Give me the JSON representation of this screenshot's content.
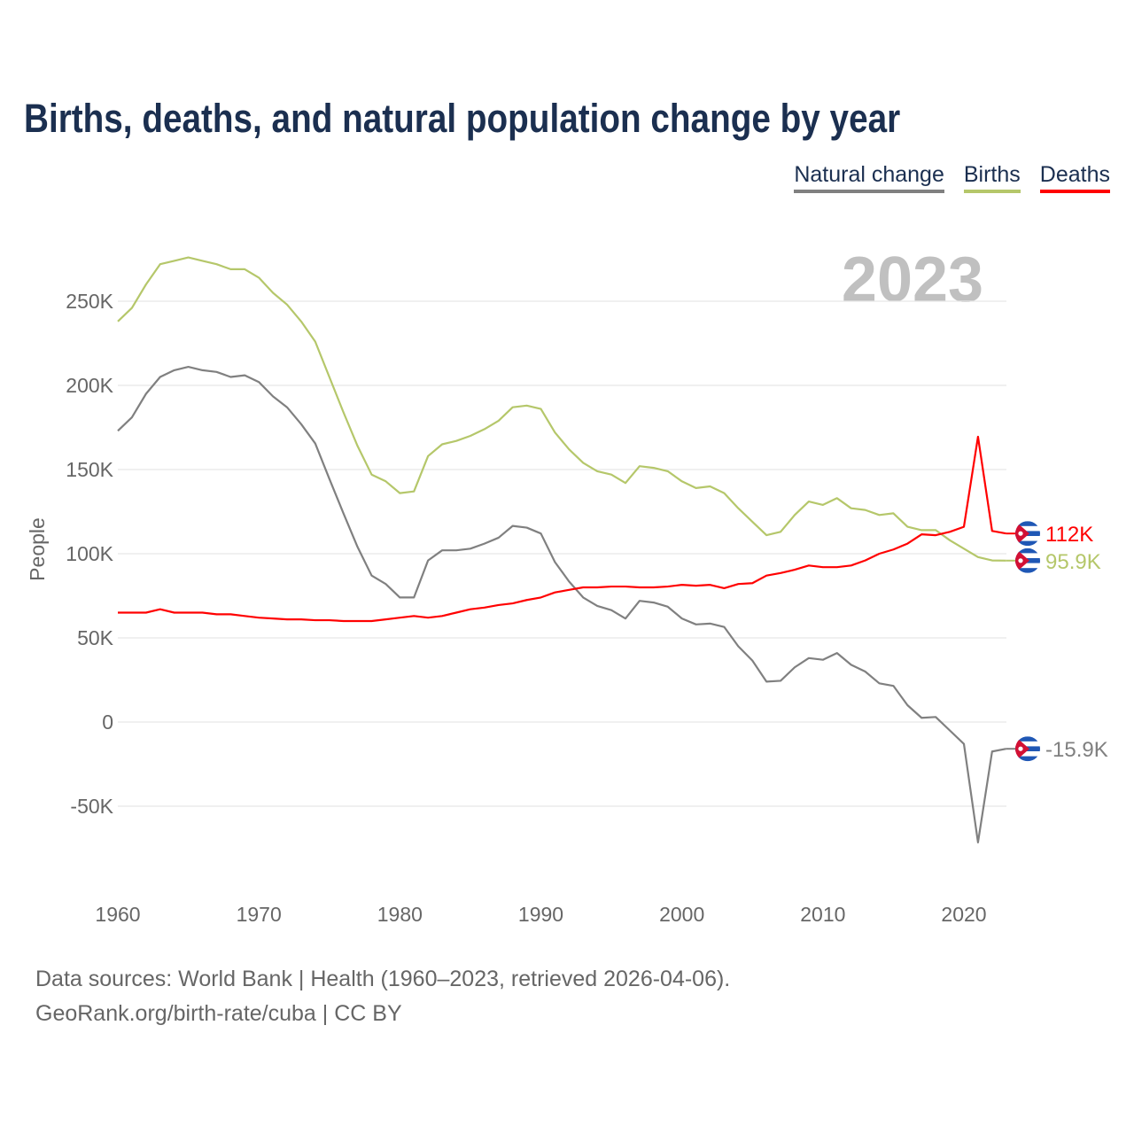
{
  "chart_data": {
    "type": "line",
    "title": "Births, deaths, and natural population change by year",
    "xlabel": "",
    "ylabel": "People",
    "xlim": [
      1960,
      2023
    ],
    "ylim": [
      -100000,
      270000
    ],
    "x_ticks": [
      1960,
      1970,
      1980,
      1990,
      2000,
      2010,
      2020
    ],
    "x_tick_labels": [
      "1960",
      "1970",
      "1980",
      "1990",
      "2000",
      "2010",
      "2020"
    ],
    "y_ticks": [
      -50000,
      0,
      50000,
      100000,
      150000,
      200000,
      250000
    ],
    "y_tick_labels": [
      "-50K",
      "0",
      "50K",
      "100K",
      "150K",
      "200K",
      "250K"
    ],
    "grid": true,
    "legend_position": "top-right",
    "year_label": "2023",
    "x": [
      1960,
      1961,
      1962,
      1963,
      1964,
      1965,
      1966,
      1967,
      1968,
      1969,
      1970,
      1971,
      1972,
      1973,
      1974,
      1975,
      1976,
      1977,
      1978,
      1979,
      1980,
      1981,
      1982,
      1983,
      1984,
      1985,
      1986,
      1987,
      1988,
      1989,
      1990,
      1991,
      1992,
      1993,
      1994,
      1995,
      1996,
      1997,
      1998,
      1999,
      2000,
      2001,
      2002,
      2003,
      2004,
      2005,
      2006,
      2007,
      2008,
      2009,
      2010,
      2011,
      2012,
      2013,
      2014,
      2015,
      2016,
      2017,
      2018,
      2019,
      2020,
      2021,
      2022,
      2023
    ],
    "series": [
      {
        "name": "Natural change",
        "color": "#808080",
        "end_label": "-15.9K",
        "values": [
          173,
          181,
          195,
          205,
          209,
          211,
          209,
          208,
          205,
          206,
          202,
          193.5,
          187,
          177,
          165.5,
          144.5,
          124,
          104,
          87,
          82,
          74,
          74,
          96,
          102,
          102,
          103,
          106,
          109.5,
          116.5,
          115.5,
          112,
          95,
          83.5,
          74,
          69,
          66.5,
          61.5,
          72,
          71,
          68.5,
          61.5,
          58,
          58.5,
          56.5,
          45,
          36.5,
          24,
          24.5,
          32.5,
          38,
          37,
          41,
          34,
          30,
          23,
          21.5,
          10,
          2.5,
          3,
          -5,
          -13,
          -71.5,
          -17.5,
          -15.9
        ]
      },
      {
        "name": "Births",
        "color": "#b5c76a",
        "end_label": "95.9K",
        "values": [
          238,
          246,
          260,
          272,
          274,
          276,
          274,
          272,
          269,
          269,
          264,
          255,
          248,
          238,
          226,
          205,
          184,
          164,
          147,
          143,
          136,
          137,
          158,
          165,
          167,
          170,
          174,
          179,
          187,
          188,
          186,
          172,
          162,
          154,
          149,
          147,
          142,
          152,
          151,
          149,
          143,
          139,
          140,
          136,
          127,
          119,
          111,
          113,
          123,
          131,
          129,
          133,
          127,
          126,
          123,
          124,
          116,
          114,
          114,
          108,
          103,
          98,
          96,
          95.9
        ]
      },
      {
        "name": "Deaths",
        "color": "#ff0000",
        "end_label": "112K",
        "values": [
          65,
          65,
          65,
          67,
          65,
          65,
          65,
          64,
          64,
          63,
          62,
          61.5,
          61,
          61,
          60.5,
          60.5,
          60,
          60,
          60,
          61,
          62,
          63,
          62,
          63,
          65,
          67,
          68,
          69.5,
          70.5,
          72.5,
          74,
          77,
          78.5,
          80,
          80,
          80.5,
          80.5,
          80,
          80,
          80.5,
          81.5,
          81,
          81.5,
          79.5,
          82,
          82.5,
          87,
          88.5,
          90.5,
          93,
          92,
          92,
          93,
          96,
          100,
          102.5,
          106,
          111.5,
          111,
          113,
          116,
          169.5,
          113.5,
          112
        ]
      }
    ],
    "value_unit": "thousands"
  },
  "source": {
    "line1": "Data sources: World Bank | Health (1960–2023, retrieved 2026-04-06).",
    "line2": "GeoRank.org/birth-rate/cuba | CC BY"
  }
}
